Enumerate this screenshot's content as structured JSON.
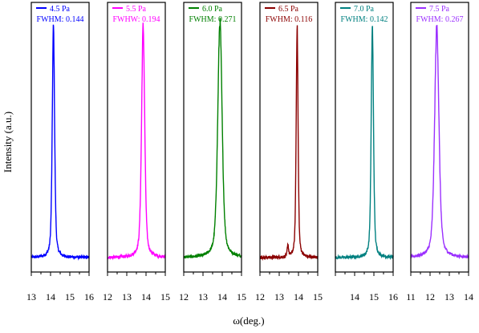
{
  "figure": {
    "ylabel": "Intensity (a.u.)",
    "xlabel": "ω(deg.)"
  },
  "chart_data": [
    {
      "type": "line",
      "title": "",
      "legend": "4.5 Pa",
      "annotation": "FWHM: 0.144",
      "color": "#0000ff",
      "xlim": [
        13,
        16
      ],
      "xticks": [
        13,
        14,
        15,
        16
      ],
      "tick_labels": [
        "13",
        "14",
        "15",
        "16"
      ],
      "peaks": [
        {
          "center": 14.15,
          "fwhm": 0.144,
          "height": 0.96
        }
      ],
      "baseline": 0.03,
      "lorentz_frac": 0.5,
      "ylim": [
        0,
        1
      ]
    },
    {
      "type": "line",
      "title": "",
      "legend": "5.5 Pa",
      "annotation": "FWHW: 0.194",
      "color": "#ff00ff",
      "xlim": [
        12,
        15
      ],
      "xticks": [
        12,
        13,
        14,
        15
      ],
      "tick_labels": [
        "12",
        "13",
        "14",
        "15"
      ],
      "peaks": [
        {
          "center": 13.85,
          "fwhm": 0.194,
          "height": 0.96
        }
      ],
      "baseline": 0.03,
      "lorentz_frac": 0.5,
      "ylim": [
        0,
        1
      ]
    },
    {
      "type": "line",
      "title": "",
      "legend": "6.0 Pa",
      "annotation": "FWHM: 0.271",
      "color": "#008000",
      "xlim": [
        12,
        15
      ],
      "xticks": [
        12,
        13,
        14,
        15
      ],
      "tick_labels": [
        "12",
        "13",
        "14",
        "15"
      ],
      "peaks": [
        {
          "center": 13.88,
          "fwhm": 0.271,
          "height": 0.98
        }
      ],
      "baseline": 0.03,
      "lorentz_frac": 0.5,
      "ylim": [
        0,
        1
      ]
    },
    {
      "type": "line",
      "title": "",
      "legend": "6.5 Pa",
      "annotation": "FWHM: 0.116",
      "color": "#8b0000",
      "xlim": [
        12,
        15
      ],
      "xticks": [
        12,
        13,
        14,
        15
      ],
      "tick_labels": [
        "12",
        "13",
        "14",
        "15"
      ],
      "peaks": [
        {
          "center": 13.93,
          "fwhm": 0.116,
          "height": 0.96
        },
        {
          "center": 13.45,
          "fwhm": 0.08,
          "height": 0.05
        }
      ],
      "baseline": 0.03,
      "lorentz_frac": 0.5,
      "ylim": [
        0,
        1
      ]
    },
    {
      "type": "line",
      "title": "",
      "legend": "7.0 Pa",
      "annotation": "FWHM: 0.142",
      "color": "#008080",
      "xlim": [
        13,
        16
      ],
      "xticks": [
        13,
        14,
        15,
        16
      ],
      "tick_labels": [
        "",
        "14",
        "15",
        "16"
      ],
      "peaks": [
        {
          "center": 14.92,
          "fwhm": 0.142,
          "height": 0.96
        }
      ],
      "baseline": 0.03,
      "lorentz_frac": 0.5,
      "ylim": [
        0,
        1
      ]
    },
    {
      "type": "line",
      "title": "",
      "legend": "7.5 Pa",
      "annotation": "FWHM: 0.267",
      "color": "#9b30ff",
      "xlim": [
        11,
        14
      ],
      "xticks": [
        11,
        12,
        13,
        14
      ],
      "tick_labels": [
        "11",
        "12",
        "13",
        "14"
      ],
      "peaks": [
        {
          "center": 12.35,
          "fwhm": 0.267,
          "height": 0.96
        }
      ],
      "baseline": 0.03,
      "lorentz_frac": 0.5,
      "ylim": [
        0,
        1
      ]
    }
  ]
}
